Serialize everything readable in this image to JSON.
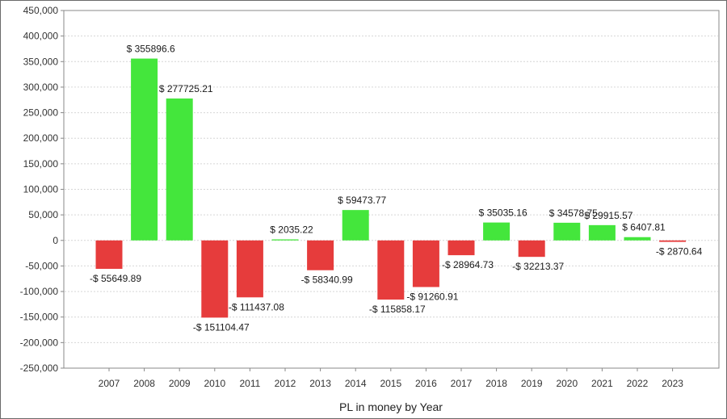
{
  "chart_data": {
    "type": "bar",
    "xlabel": "PL in money by Year",
    "ylabel": "",
    "ylim": [
      -250000,
      450000
    ],
    "ytick_step": 50000,
    "grid": true,
    "colors": {
      "positive": "#44e63c",
      "negative": "#e63c3c"
    },
    "categories": [
      "2007",
      "2008",
      "2009",
      "2010",
      "2011",
      "2012",
      "2013",
      "2014",
      "2015",
      "2016",
      "2017",
      "2018",
      "2019",
      "2020",
      "2021",
      "2022",
      "2023"
    ],
    "values": [
      -55649.89,
      355896.6,
      277725.21,
      -151104.47,
      -111437.08,
      2035.22,
      -58340.99,
      59473.77,
      -115858.17,
      -91260.91,
      -28964.73,
      35035.16,
      -32213.37,
      34578.75,
      29915.57,
      6407.81,
      -2870.64
    ],
    "data_labels": [
      "-$ 55649.89",
      "$ 355896.6",
      "$ 277725.21",
      "-$ 151104.47",
      "-$ 111437.08",
      "$ 2035.22",
      "-$ 58340.99",
      "$ 59473.77",
      "-$ 115858.17",
      "-$ 91260.91",
      "-$ 28964.73",
      "$ 35035.16",
      "-$ 32213.37",
      "$ 34578.75",
      "$ 29915.57",
      "$ 6407.81",
      "-$ 2870.64"
    ],
    "ytick_labels": [
      "-250,000",
      "-200,000",
      "-150,000",
      "-100,000",
      "-50,000",
      "0",
      "50,000",
      "100,000",
      "150,000",
      "200,000",
      "250,000",
      "300,000",
      "350,000",
      "400,000",
      "450,000"
    ]
  }
}
